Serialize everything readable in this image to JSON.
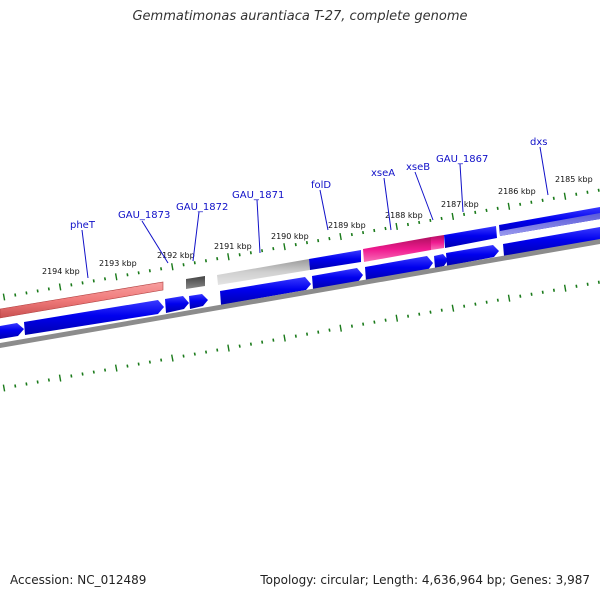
{
  "title": "Gemmatimonas aurantiaca T-27, complete genome",
  "footer": {
    "accession": "Accession: NC_012489",
    "summary": "Topology: circular; Length: 4,636,964 bp; Genes: 3,987"
  },
  "kbp_labels": [
    "2194 kbp",
    "2193 kbp",
    "2192 kbp",
    "2191 kbp",
    "2190 kbp",
    "2189 kbp",
    "2188 kbp",
    "2187 kbp",
    "2186 kbp",
    "2185 kbp"
  ],
  "gene_labels": [
    "pheT",
    "GAU_1873",
    "GAU_1872",
    "GAU_1871",
    "folD",
    "xseA",
    "xseB",
    "GAU_1867",
    "dxs"
  ],
  "colors": {
    "gene_blue": "#0000ee",
    "pheT_pink": "#f07070",
    "xse_magenta": "#ee1a88",
    "gray_track": "#909090",
    "tick_green": "#1a7a1a",
    "label_blue": "#1010c8"
  }
}
